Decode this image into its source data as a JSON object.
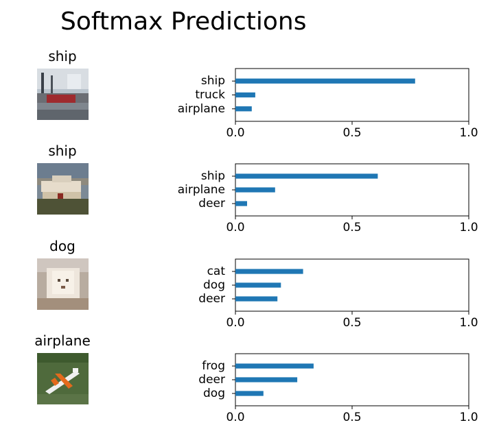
{
  "suptitle": "Softmax Predictions",
  "items": [
    {
      "true_label": "ship",
      "image": "small photo of a red ship in the water"
    },
    {
      "true_label": "ship",
      "image": "small photo of a white boat on shore"
    },
    {
      "true_label": "dog",
      "image": "small photo of a white fluffy dog"
    },
    {
      "true_label": "airplane",
      "image": "small photo of an orange and white airplane on grass"
    }
  ],
  "colors": {
    "bar": "#1f77b4"
  },
  "chart_data": [
    {
      "type": "bar",
      "orientation": "horizontal",
      "categories": [
        "ship",
        "truck",
        "airplane"
      ],
      "values": [
        0.77,
        0.085,
        0.07
      ],
      "xlim": [
        0,
        1.0
      ],
      "xticks": [
        "0.0",
        "0.5",
        "1.0"
      ],
      "title": "",
      "xlabel": "",
      "ylabel": ""
    },
    {
      "type": "bar",
      "orientation": "horizontal",
      "categories": [
        "ship",
        "airplane",
        "deer"
      ],
      "values": [
        0.61,
        0.17,
        0.05
      ],
      "xlim": [
        0,
        1.0
      ],
      "xticks": [
        "0.0",
        "0.5",
        "1.0"
      ],
      "title": "",
      "xlabel": "",
      "ylabel": ""
    },
    {
      "type": "bar",
      "orientation": "horizontal",
      "categories": [
        "cat",
        "dog",
        "deer"
      ],
      "values": [
        0.29,
        0.195,
        0.18
      ],
      "xlim": [
        0,
        1.0
      ],
      "xticks": [
        "0.0",
        "0.5",
        "1.0"
      ],
      "title": "",
      "xlabel": "",
      "ylabel": ""
    },
    {
      "type": "bar",
      "orientation": "horizontal",
      "categories": [
        "frog",
        "deer",
        "dog"
      ],
      "values": [
        0.335,
        0.265,
        0.12
      ],
      "xlim": [
        0,
        1.0
      ],
      "xticks": [
        "0.0",
        "0.5",
        "1.0"
      ],
      "title": "",
      "xlabel": "",
      "ylabel": ""
    }
  ]
}
